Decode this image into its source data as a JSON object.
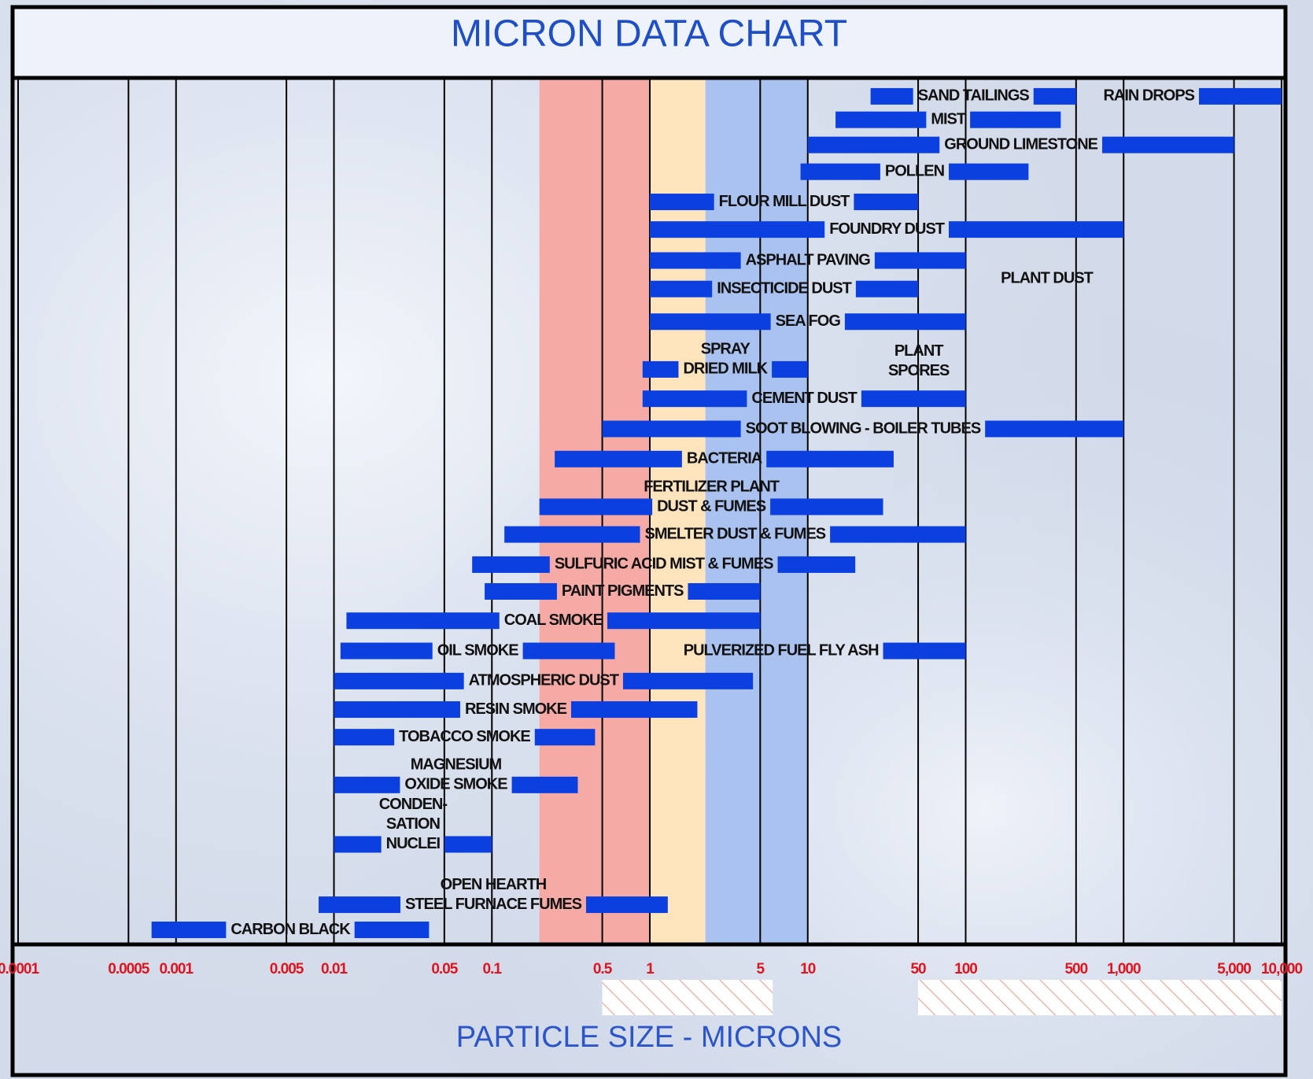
{
  "chart_data": {
    "type": "range_bar",
    "title": "MICRON DATA CHART",
    "x_label": "PARTICLE SIZE - MICRONS",
    "log_x": true,
    "xlim": [
      0.0001,
      10000
    ],
    "xticks": [
      0.0001,
      0.0005,
      0.001,
      0.005,
      0.01,
      0.05,
      0.1,
      0.5,
      1,
      5,
      10,
      50,
      100,
      500,
      {
        "value": 1000,
        "label": "1,000"
      },
      {
        "value": 5000,
        "label": "5,000"
      },
      {
        "value": 10000,
        "label": "10,000"
      }
    ],
    "grid": true,
    "color": "#0b3fe0",
    "bands": [
      {
        "range": [
          0.2,
          1
        ],
        "color": "#f6aaa6"
      },
      {
        "range": [
          1,
          2.25
        ],
        "color": "#fde4bc"
      },
      {
        "range": [
          2.25,
          10
        ],
        "color": "#aac2ef"
      }
    ],
    "hatch_ranges": [
      [
        0.5,
        6
      ],
      [
        50,
        10000
      ]
    ],
    "items": [
      {
        "name": [
          "SAND TAILINGS"
        ],
        "range": [
          25,
          500
        ]
      },
      {
        "name": [
          "RAIN DROPS"
        ],
        "range": [
          3000,
          10000
        ]
      },
      {
        "name": [
          "MIST"
        ],
        "range": [
          15,
          400
        ]
      },
      {
        "name": [
          "GROUND LIMESTONE"
        ],
        "range": [
          10,
          5000
        ]
      },
      {
        "name": [
          "POLLEN"
        ],
        "range": [
          9,
          250
        ]
      },
      {
        "name": [
          "FLOUR MILL DUST"
        ],
        "range": [
          1,
          50
        ]
      },
      {
        "name": [
          "FOUNDRY DUST"
        ],
        "range": [
          1,
          1000
        ]
      },
      {
        "name": [
          "ASPHALT PAVING"
        ],
        "range": [
          1,
          100
        ]
      },
      {
        "name": [
          "INSECTICIDE DUST"
        ],
        "range": [
          1,
          50
        ]
      },
      {
        "name": [
          "SEA FOG"
        ],
        "range": [
          1,
          100
        ]
      },
      {
        "name": [
          "SPRAY",
          "DRIED MILK"
        ],
        "range": [
          0.9,
          10
        ]
      },
      {
        "name": [
          "CEMENT DUST"
        ],
        "range": [
          0.9,
          100
        ]
      },
      {
        "name": [
          "SOOT BLOWING - BOILER TUBES"
        ],
        "range": [
          0.5,
          1000
        ]
      },
      {
        "name": [
          "BACTERIA"
        ],
        "range": [
          0.25,
          35
        ]
      },
      {
        "name": [
          "FERTILIZER PLANT",
          "DUST & FUMES"
        ],
        "range": [
          0.2,
          30
        ]
      },
      {
        "name": [
          "SMELTER DUST & FUMES"
        ],
        "range": [
          0.12,
          100
        ]
      },
      {
        "name": [
          "SULFURIC ACID MIST & FUMES"
        ],
        "range": [
          0.075,
          20
        ]
      },
      {
        "name": [
          "PAINT PIGMENTS"
        ],
        "range": [
          0.09,
          5
        ]
      },
      {
        "name": [
          "COAL SMOKE"
        ],
        "range": [
          0.012,
          5
        ]
      },
      {
        "name": [
          "OIL SMOKE"
        ],
        "range": [
          0.011,
          0.6
        ]
      },
      {
        "name": [
          "PULVERIZED FUEL FLY ASH"
        ],
        "range": [
          30,
          100
        ]
      },
      {
        "name": [
          "ATMOSPHERIC DUST"
        ],
        "range": [
          0.01,
          4.5
        ]
      },
      {
        "name": [
          "RESIN SMOKE"
        ],
        "range": [
          0.01,
          2
        ]
      },
      {
        "name": [
          "TOBACCO SMOKE"
        ],
        "range": [
          0.01,
          0.45
        ]
      },
      {
        "name": [
          "MAGNESIUM",
          "OXIDE SMOKE"
        ],
        "range": [
          0.01,
          0.35
        ]
      },
      {
        "name": [
          "CONDEN-",
          "SATION",
          "NUCLEI"
        ],
        "range": [
          0.01,
          0.1
        ]
      },
      {
        "name": [
          "OPEN HEARTH",
          "STEEL FURNACE FUMES"
        ],
        "range": [
          0.008,
          1.3
        ]
      },
      {
        "name": [
          "CARBON BLACK"
        ],
        "range": [
          0.0007,
          0.04
        ]
      }
    ],
    "annotations": [
      [
        "PLANT DUST"
      ],
      [
        "PLANT",
        "SPORES"
      ]
    ]
  }
}
